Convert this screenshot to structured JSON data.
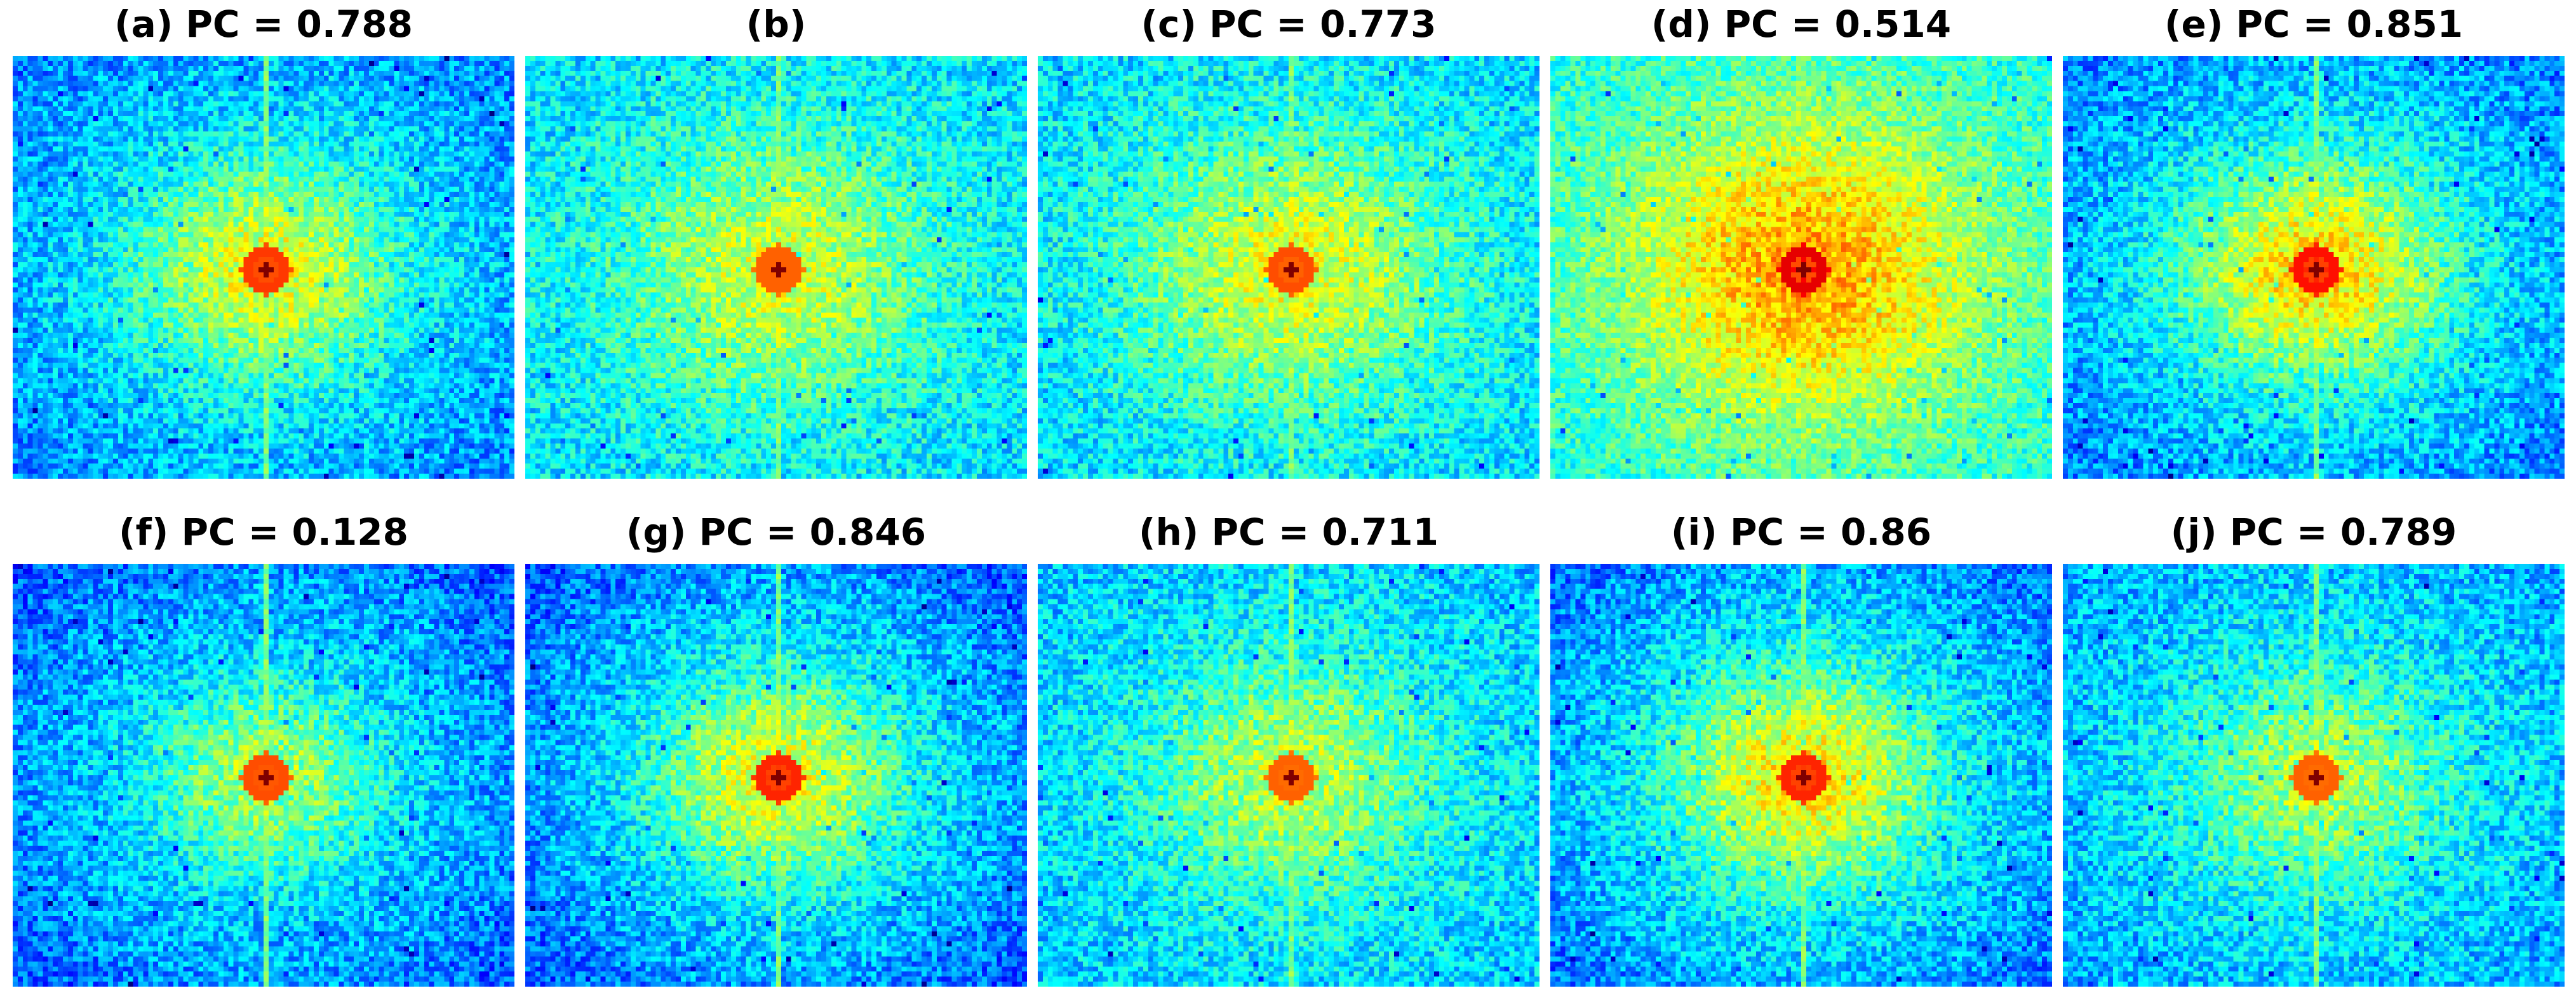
{
  "chart_data": {
    "type": "heatmap",
    "layout": "2 rows x 5 columns of spectrum maps",
    "colormap": "jet",
    "axes": "off",
    "panels": [
      {
        "title": "(a) PC = 0.788",
        "label": "(a)",
        "pc": 0.788,
        "center_peak": "dark red",
        "background": "cyan-blue, green near center"
      },
      {
        "title": "(b)",
        "label": "(b)",
        "pc": null,
        "center_peak": "dark red",
        "background": "cyan-green"
      },
      {
        "title": "(c) PC = 0.773",
        "label": "(c)",
        "pc": 0.773,
        "center_peak": "dark red",
        "background": "cyan-green"
      },
      {
        "title": "(d) PC = 0.514",
        "label": "(d)",
        "pc": 0.514,
        "center_peak": "dark red cross",
        "background": "green-yellow"
      },
      {
        "title": "(e) PC = 0.851",
        "label": "(e)",
        "pc": 0.851,
        "center_peak": "dark red",
        "background": "green-yellow center, blue corners"
      },
      {
        "title": "(f) PC = 0.128",
        "label": "(f)",
        "pc": 0.128,
        "center_peak": "dark red",
        "background": "blue corners, cyan"
      },
      {
        "title": "(g) PC = 0.846",
        "label": "(g)",
        "pc": 0.846,
        "center_peak": "dark red",
        "background": "blue corners, green center"
      },
      {
        "title": "(h) PC = 0.711",
        "label": "(h)",
        "pc": 0.711,
        "center_peak": "dark red",
        "background": "cyan"
      },
      {
        "title": "(i) PC = 0.86",
        "label": "(i)",
        "pc": 0.86,
        "center_peak": "dark red",
        "background": "blue corners, green-yellow center"
      },
      {
        "title": "(j) PC = 0.789",
        "label": "(j)",
        "pc": 0.789,
        "center_peak": "dark red",
        "background": "cyan-blue"
      }
    ]
  }
}
